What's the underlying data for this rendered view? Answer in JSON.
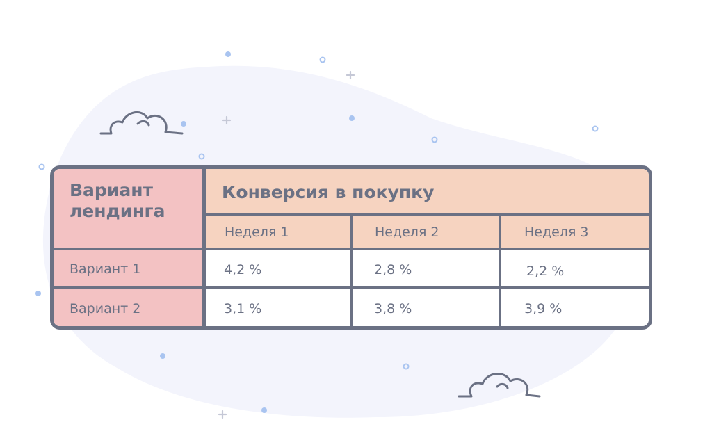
{
  "table": {
    "corner_header": "Вариант лендинга",
    "group_header": "Конверсия в покупку",
    "week_headers": [
      "Неделя 1",
      "Неделя 2",
      "Неделя 3"
    ],
    "rows": [
      {
        "label": "Вариант 1",
        "values": [
          "4,2 %",
          "2,8 %",
          "2,2 %"
        ]
      },
      {
        "label": "Вариант 2",
        "values": [
          "3,1 %",
          "3,8 %",
          "3,9 %"
        ]
      }
    ]
  },
  "colors": {
    "border": "#6b7184",
    "row_header_bg": "#f3c2c3",
    "column_header_bg": "#f6d3c0",
    "blob": "#f3f4fc",
    "dots": "#a9c4f0"
  },
  "decorations": [
    "cloud-icon",
    "cloud-icon",
    "sparkle-dots"
  ]
}
